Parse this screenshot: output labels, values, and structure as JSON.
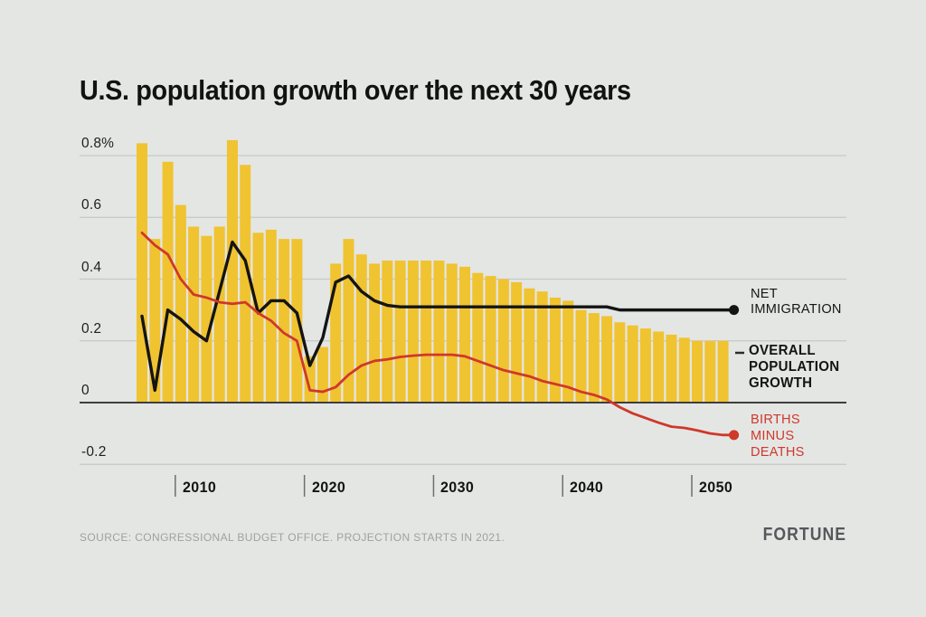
{
  "page": {
    "background": "#e4e6e4"
  },
  "header": {
    "title": "U.S. population growth over the next 30 years"
  },
  "footer": {
    "source": "SOURCE: CONGRESSIONAL BUDGET OFFICE. PROJECTION STARTS IN 2021.",
    "brand": "FORTUNE"
  },
  "chart_data": {
    "type": "bar+line",
    "title": "U.S. population growth over the next 30 years",
    "unit": "percent",
    "grid": true,
    "legend_position": "right",
    "ylim": [
      -0.28,
      0.9
    ],
    "x": [
      2007,
      2008,
      2009,
      2010,
      2011,
      2012,
      2013,
      2014,
      2015,
      2016,
      2017,
      2018,
      2019,
      2020,
      2021,
      2022,
      2023,
      2024,
      2025,
      2026,
      2027,
      2028,
      2029,
      2030,
      2031,
      2032,
      2033,
      2034,
      2035,
      2036,
      2037,
      2038,
      2039,
      2040,
      2041,
      2042,
      2043,
      2044,
      2045,
      2046,
      2047,
      2048,
      2049,
      2050,
      2051,
      2052
    ],
    "x_ticks": [
      2010,
      2020,
      2030,
      2040,
      2050
    ],
    "y_ticks": [
      {
        "label": "0.8%",
        "value": 0.8
      },
      {
        "label": "0.6",
        "value": 0.6
      },
      {
        "label": "0.4",
        "value": 0.4
      },
      {
        "label": "0.2",
        "value": 0.2
      },
      {
        "label": "0",
        "value": 0
      },
      {
        "label": "-0.2",
        "value": -0.2
      }
    ],
    "series": [
      {
        "name": "Overall population growth",
        "type": "bar",
        "color": "#f0c330",
        "label_lines": [
          "OVERALL",
          "POPULATION",
          "GROWTH"
        ],
        "values": [
          0.84,
          0.53,
          0.78,
          0.64,
          0.57,
          0.54,
          0.57,
          0.85,
          0.77,
          0.55,
          0.56,
          0.53,
          0.53,
          0.15,
          0.18,
          0.45,
          0.53,
          0.48,
          0.45,
          0.46,
          0.46,
          0.46,
          0.46,
          0.46,
          0.45,
          0.44,
          0.42,
          0.41,
          0.4,
          0.39,
          0.37,
          0.36,
          0.34,
          0.33,
          0.3,
          0.29,
          0.28,
          0.26,
          0.25,
          0.24,
          0.23,
          0.22,
          0.21,
          0.2,
          0.2,
          0.2
        ]
      },
      {
        "name": "Net immigration",
        "type": "line",
        "color": "#141414",
        "label_lines": [
          "NET",
          "IMMIGRATION"
        ],
        "values": [
          0.28,
          0.04,
          0.3,
          0.27,
          0.23,
          0.2,
          0.36,
          0.52,
          0.46,
          0.29,
          0.33,
          0.33,
          0.29,
          0.12,
          0.21,
          0.39,
          0.41,
          0.36,
          0.33,
          0.315,
          0.31,
          0.31,
          0.31,
          0.31,
          0.31,
          0.31,
          0.31,
          0.31,
          0.31,
          0.31,
          0.31,
          0.31,
          0.31,
          0.31,
          0.31,
          0.31,
          0.31,
          0.3,
          0.3,
          0.3,
          0.3,
          0.3,
          0.3,
          0.3,
          0.3,
          0.3
        ]
      },
      {
        "name": "Births minus deaths",
        "type": "line",
        "color": "#cf382b",
        "label_lines": [
          "BIRTHS",
          "MINUS",
          "DEATHS"
        ],
        "values": [
          0.55,
          0.51,
          0.48,
          0.4,
          0.35,
          0.34,
          0.325,
          0.32,
          0.325,
          0.29,
          0.265,
          0.225,
          0.2,
          0.04,
          0.035,
          0.05,
          0.09,
          0.12,
          0.135,
          0.14,
          0.148,
          0.152,
          0.155,
          0.155,
          0.155,
          0.15,
          0.135,
          0.12,
          0.105,
          0.095,
          0.085,
          0.07,
          0.06,
          0.05,
          0.035,
          0.025,
          0.01,
          -0.015,
          -0.035,
          -0.05,
          -0.065,
          -0.078,
          -0.082,
          -0.09,
          -0.1,
          -0.105
        ]
      }
    ]
  }
}
